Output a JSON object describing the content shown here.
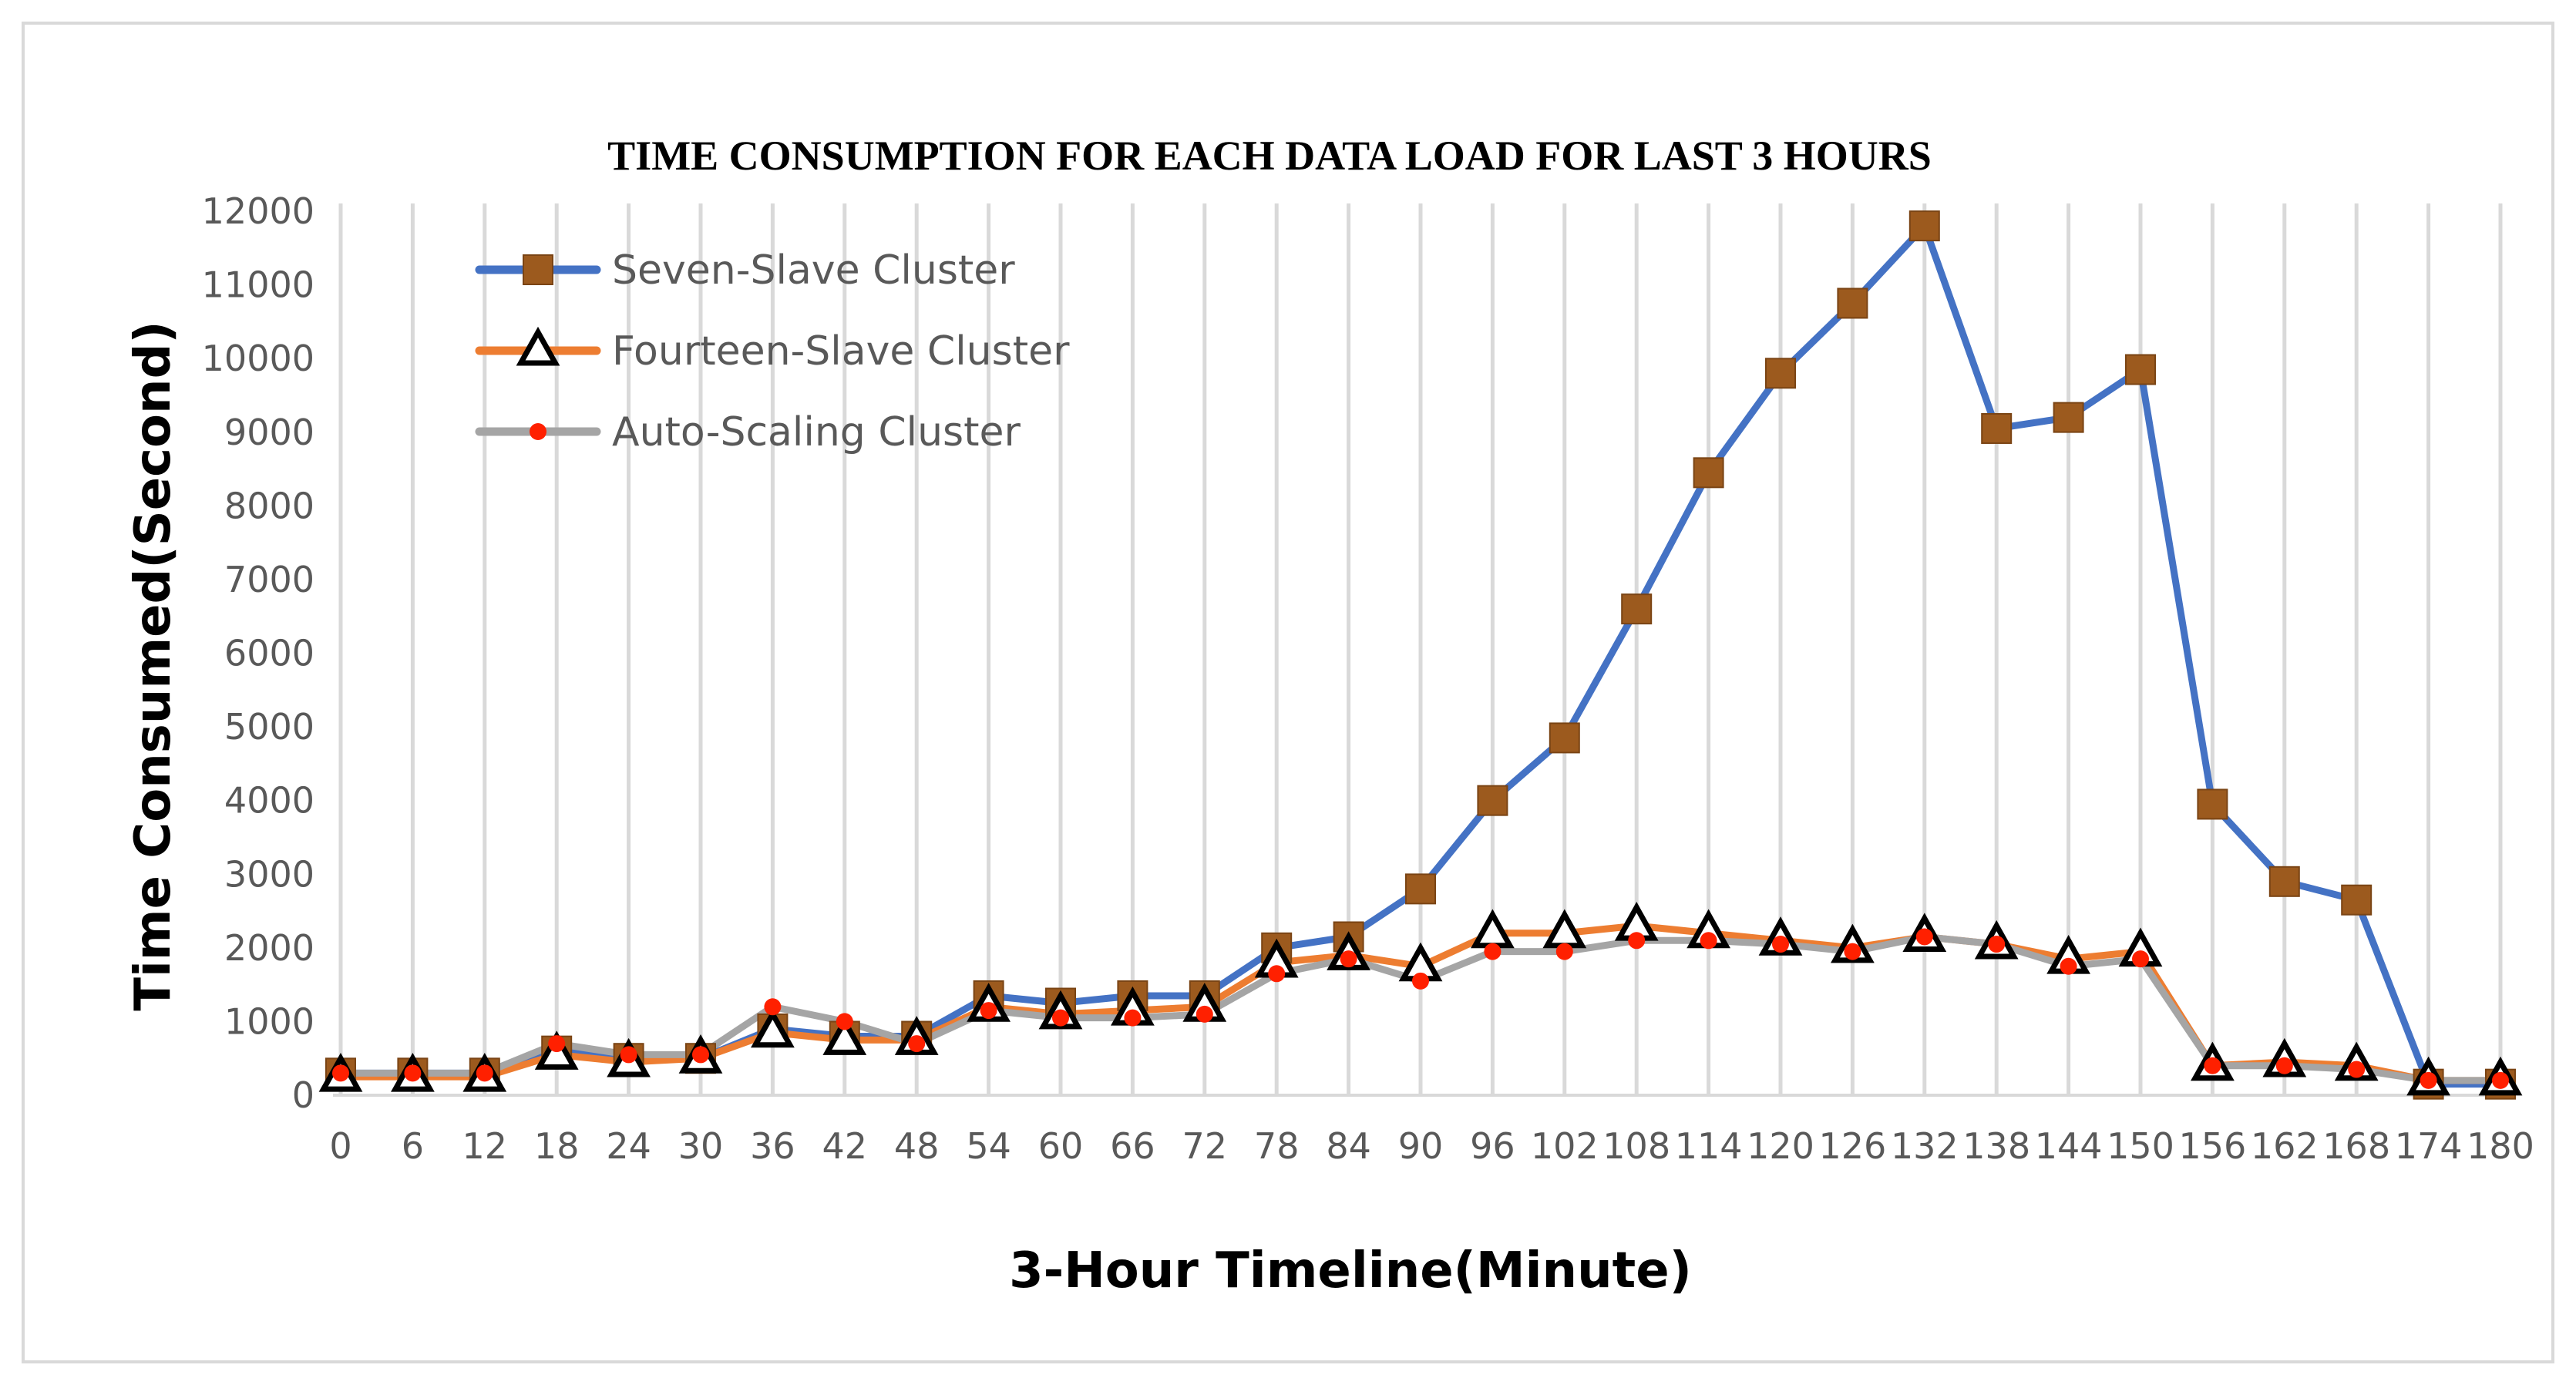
{
  "chart_data": {
    "type": "line",
    "title": "TIME CONSUMPTION FOR EACH DATA LOAD FOR LAST 3 HOURS",
    "xlabel": "3-Hour Timeline(Minute)",
    "ylabel": "Time Consumed(Second)",
    "ylim": [
      0,
      12000
    ],
    "yticks": [
      0,
      1000,
      2000,
      3000,
      4000,
      5000,
      6000,
      7000,
      8000,
      9000,
      10000,
      11000,
      12000
    ],
    "grid": "vertical",
    "legend_position": "top-left",
    "categories": [
      "0",
      "6",
      "12",
      "18",
      "24",
      "30",
      "36",
      "42",
      "48",
      "54",
      "60",
      "66",
      "72",
      "78",
      "84",
      "90",
      "96",
      "102",
      "108",
      "114",
      "120",
      "126",
      "132",
      "138",
      "144",
      "150",
      "156",
      "162",
      "168",
      "174",
      "180"
    ],
    "series": [
      {
        "name": "Seven-Slave Cluster",
        "color": "#4472c4",
        "marker": "square",
        "marker_color": "#9c5a1e",
        "values": [
          300,
          300,
          300,
          600,
          500,
          500,
          900,
          800,
          800,
          1350,
          1250,
          1350,
          1350,
          2000,
          2150,
          2800,
          4000,
          4850,
          6600,
          8450,
          9800,
          10750,
          11800,
          9050,
          9200,
          9850,
          3950,
          2900,
          2650,
          150,
          150
        ]
      },
      {
        "name": "Fourteen-Slave Cluster",
        "color": "#ed7d31",
        "marker": "triangle",
        "marker_color": "#000000",
        "values": [
          250,
          250,
          250,
          550,
          450,
          500,
          850,
          750,
          750,
          1200,
          1100,
          1150,
          1200,
          1800,
          1900,
          1750,
          2200,
          2200,
          2300,
          2200,
          2100,
          2000,
          2150,
          2050,
          1850,
          1950,
          400,
          450,
          400,
          200,
          200
        ]
      },
      {
        "name": "Auto-Scaling Cluster",
        "color": "#a5a5a5",
        "marker": "dot",
        "marker_color": "#ff2000",
        "values": [
          300,
          300,
          300,
          700,
          550,
          550,
          1200,
          1000,
          700,
          1150,
          1050,
          1050,
          1100,
          1650,
          1850,
          1550,
          1950,
          1950,
          2100,
          2100,
          2050,
          1950,
          2150,
          2050,
          1750,
          1850,
          400,
          400,
          350,
          200,
          200
        ]
      }
    ]
  }
}
